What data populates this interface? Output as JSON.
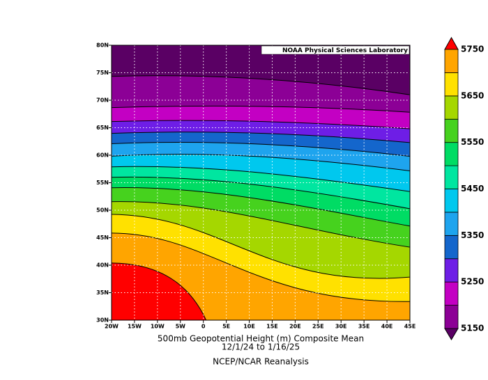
{
  "map": {
    "title": "500mb Geopotential Height (m) Composite Mean",
    "date_range": "12/1/24  to 1/16/25",
    "source": "NCEP/NCAR Reanalysis",
    "credit": "NOAA Physical Sciences Laboratory",
    "lon_labels": [
      "20W",
      "15W",
      "10W",
      "5W",
      "0",
      "5E",
      "10E",
      "15E",
      "20E",
      "25E",
      "30E",
      "35E",
      "40E",
      "45E"
    ],
    "lat_labels": [
      "30N",
      "35N",
      "40N",
      "45N",
      "50N",
      "55N",
      "60N",
      "65N",
      "70N",
      "75N",
      "80N"
    ],
    "colorbar": {
      "levels": [
        5150,
        5200,
        5250,
        5300,
        5350,
        5400,
        5450,
        5500,
        5550,
        5600,
        5650,
        5700,
        5750
      ],
      "labels": [
        5150,
        5250,
        5350,
        5450,
        5550,
        5650,
        5750
      ],
      "colors": [
        "#5a0064",
        "#8c0096",
        "#c300c3",
        "#6e1ee6",
        "#1466cc",
        "#1ea4ee",
        "#00c8ee",
        "#00e6a0",
        "#00dc64",
        "#46d21e",
        "#a5d700",
        "#ffe100",
        "#ffa500",
        "#ff6400",
        "#ff0000"
      ]
    }
  }
}
